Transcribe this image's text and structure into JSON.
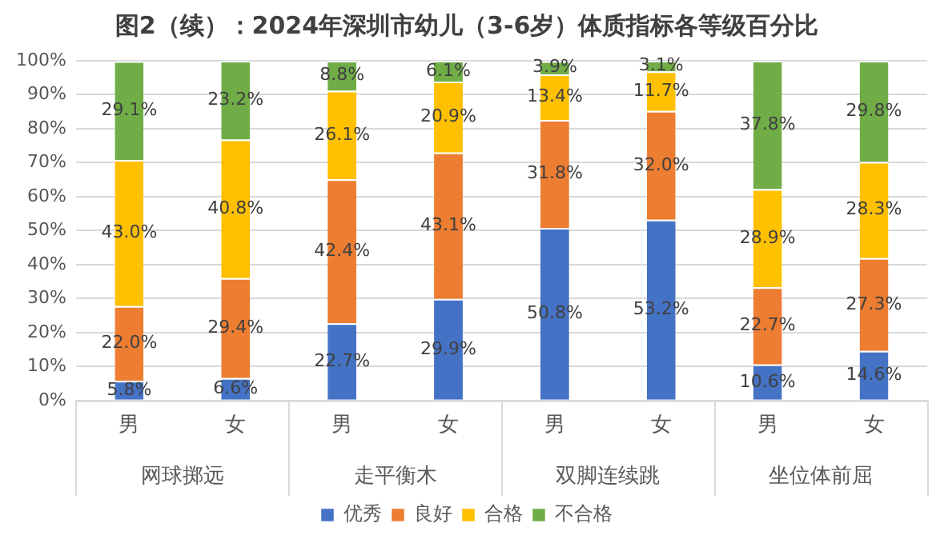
{
  "chart_data": {
    "type": "bar",
    "title": "图2（续）：2024年深圳市幼儿（3-6岁）体质指标各等级百分比",
    "categories": [
      "男",
      "女",
      "男",
      "女",
      "男",
      "女",
      "男",
      "女"
    ],
    "annotations": [
      "网球掷远",
      "走平衡木",
      "双脚连续跳",
      "坐位体前屈"
    ],
    "stacked": true,
    "ylim": [
      0,
      100
    ],
    "yticks": [
      {
        "value": 0,
        "label": "0%"
      },
      {
        "value": 10,
        "label": "10%"
      },
      {
        "value": 20,
        "label": "20%"
      },
      {
        "value": 30,
        "label": "30%"
      },
      {
        "value": 40,
        "label": "40%"
      },
      {
        "value": 50,
        "label": "50%"
      },
      {
        "value": 60,
        "label": "60%"
      },
      {
        "value": 70,
        "label": "70%"
      },
      {
        "value": 80,
        "label": "80%"
      },
      {
        "value": 90,
        "label": "90%"
      },
      {
        "value": 100,
        "label": "100%"
      }
    ],
    "grid": "y",
    "legend": "bottom",
    "series": [
      {
        "name": "优秀",
        "color": "#4472c4",
        "values": [
          5.8,
          6.6,
          22.7,
          29.9,
          50.8,
          53.2,
          10.6,
          14.6
        ],
        "value_labels": [
          "5.8%",
          "6.6%",
          "22.7%",
          "29.9%",
          "50.8%",
          "53.2%",
          "10.6%",
          "14.6%"
        ]
      },
      {
        "name": "良好",
        "color": "#ed7d31",
        "values": [
          22.0,
          29.4,
          42.4,
          43.1,
          31.8,
          32.0,
          22.7,
          27.3
        ],
        "value_labels": [
          "22.0%",
          "29.4%",
          "42.4%",
          "43.1%",
          "31.8%",
          "32.0%",
          "22.7%",
          "27.3%"
        ]
      },
      {
        "name": "合格",
        "color": "#ffc000",
        "values": [
          43.0,
          40.8,
          26.1,
          20.9,
          13.4,
          11.7,
          28.9,
          28.3
        ],
        "value_labels": [
          "43.0%",
          "40.8%",
          "26.1%",
          "20.9%",
          "13.4%",
          "11.7%",
          "28.9%",
          "28.3%"
        ]
      },
      {
        "name": "不合格",
        "color": "#70ad47",
        "values": [
          29.1,
          23.2,
          8.8,
          6.1,
          3.9,
          3.1,
          37.8,
          29.8
        ],
        "value_labels": [
          "29.1%",
          "23.2%",
          "8.8%",
          "6.1%",
          "3.9%",
          "3.1%",
          "37.8%",
          "29.8%"
        ]
      }
    ]
  }
}
